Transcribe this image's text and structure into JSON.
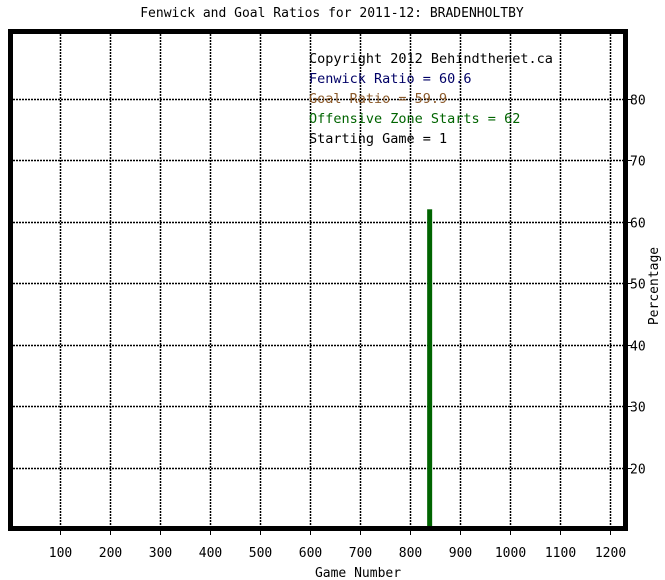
{
  "chart_data": {
    "type": "bar",
    "title": "Fenwick and Goal Ratios for 2011-12: BRADENHOLTBY",
    "xlabel": "Game Number",
    "ylabel": "Percentage",
    "xlim": [
      0,
      1233
    ],
    "ylim": [
      10,
      91
    ],
    "x_ticks": [
      100,
      200,
      300,
      400,
      500,
      600,
      700,
      800,
      900,
      1000,
      1100,
      1200
    ],
    "y_ticks": [
      20,
      30,
      40,
      50,
      60,
      70,
      80
    ],
    "grid": true,
    "annotations": [
      {
        "text": "Copyright 2012 Behindthenet.ca",
        "color": "#000000"
      },
      {
        "text": "Fenwick Ratio = 60.6",
        "color": "#000066"
      },
      {
        "text": "Goal Ratio = 59.9",
        "color": "#8b5a2b"
      },
      {
        "text": "Offensive Zone Starts = 62",
        "color": "#006400"
      },
      {
        "text": "Starting Game = 1",
        "color": "#000000"
      }
    ],
    "series": [
      {
        "x": 840,
        "value": 62,
        "color": "#006400"
      }
    ]
  }
}
